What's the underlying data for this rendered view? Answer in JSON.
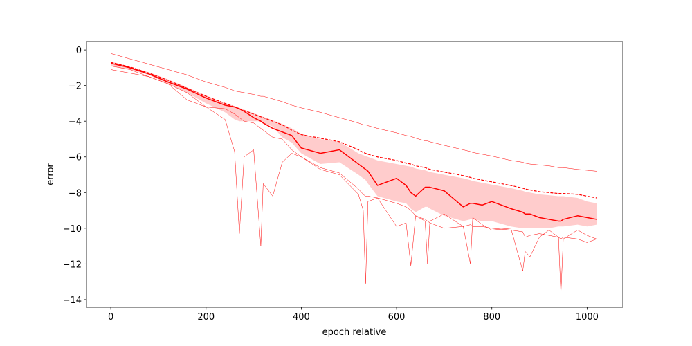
{
  "chart_data": {
    "type": "line",
    "x_label": "epoch relative",
    "y_label": "error",
    "xlim": [
      -51,
      1075
    ],
    "ylim": [
      -14.43,
      0.47
    ],
    "xticks": [
      0,
      200,
      400,
      600,
      800,
      1000
    ],
    "yticks": [
      0,
      {
        "value": -2,
        "label": "−2"
      },
      {
        "value": -4,
        "label": "−4"
      },
      {
        "value": -6,
        "label": "−6"
      },
      {
        "value": -8,
        "label": "−8"
      },
      {
        "value": -10,
        "label": "−10"
      },
      {
        "value": -12,
        "label": "−12"
      },
      {
        "value": -14,
        "label": "−14"
      }
    ],
    "x": [
      0,
      40,
      80,
      120,
      160,
      200,
      240,
      260,
      270,
      280,
      300,
      315,
      320,
      340,
      360,
      380,
      400,
      440,
      480,
      520,
      530,
      535,
      540,
      560,
      600,
      620,
      630,
      640,
      660,
      665,
      670,
      700,
      740,
      755,
      760,
      780,
      800,
      840,
      865,
      870,
      880,
      900,
      920,
      940,
      945,
      950,
      980,
      1000,
      1020
    ],
    "band": {
      "color": "#ff0000",
      "opacity": 0.2,
      "lower": [
        -0.9,
        -1.1,
        -1.4,
        -1.9,
        -2.4,
        -3.0,
        -3.5,
        -3.9,
        -4.0,
        -4.0,
        -4.0,
        -4.0,
        -4.1,
        -4.3,
        -4.9,
        -5.2,
        -5.8,
        -6.4,
        -6.3,
        -7.0,
        -7.2,
        -7.3,
        -7.5,
        -8.2,
        -8.5,
        -8.6,
        -8.9,
        -9.1,
        -8.8,
        -8.8,
        -8.9,
        -9.3,
        -9.6,
        -9.5,
        -9.5,
        -9.6,
        -9.6,
        -9.9,
        -10.0,
        -10.0,
        -10.0,
        -10.0,
        -10.0,
        -9.9,
        -9.9,
        -9.9,
        -9.8,
        -9.9,
        -9.8
      ],
      "upper": [
        -0.65,
        -0.95,
        -1.25,
        -1.65,
        -2.1,
        -2.55,
        -3.0,
        -3.15,
        -3.25,
        -3.35,
        -3.55,
        -3.7,
        -3.75,
        -3.95,
        -4.15,
        -4.4,
        -4.7,
        -5.0,
        -5.15,
        -5.8,
        -5.9,
        -5.95,
        -6.0,
        -6.2,
        -6.4,
        -6.5,
        -6.55,
        -6.65,
        -6.75,
        -6.8,
        -6.85,
        -7.0,
        -7.2,
        -7.3,
        -7.35,
        -7.45,
        -7.55,
        -7.75,
        -7.9,
        -7.95,
        -8.0,
        -8.1,
        -8.15,
        -8.2,
        -8.2,
        -8.2,
        -8.3,
        -8.5,
        -8.6
      ]
    },
    "series": [
      {
        "color": "#ff0000",
        "width": 0.5,
        "dash": "solid",
        "values": [
          -0.2,
          -0.5,
          -0.8,
          -1.1,
          -1.4,
          -1.8,
          -2.1,
          -2.3,
          -2.35,
          -2.4,
          -2.5,
          -2.6,
          -2.6,
          -2.75,
          -2.9,
          -3.1,
          -3.25,
          -3.5,
          -3.8,
          -4.1,
          -4.2,
          -4.2,
          -4.25,
          -4.4,
          -4.65,
          -4.8,
          -4.85,
          -4.95,
          -5.1,
          -5.1,
          -5.15,
          -5.35,
          -5.6,
          -5.7,
          -5.75,
          -5.85,
          -5.95,
          -6.2,
          -6.3,
          -6.35,
          -6.4,
          -6.45,
          -6.5,
          -6.6,
          -6.6,
          -6.6,
          -6.7,
          -6.75,
          -6.8
        ]
      },
      {
        "color": "#ff0000",
        "width": 0.5,
        "dash": "solid",
        "values": [
          -1.1,
          -1.3,
          -1.5,
          -1.9,
          -2.4,
          -3.2,
          -3.3,
          -3.6,
          -3.8,
          -4.0,
          -4.1,
          -4.4,
          -4.5,
          -4.9,
          -5.0,
          -5.6,
          -6.0,
          -6.6,
          -6.9,
          -7.8,
          -8.1,
          -8.2,
          -8.2,
          -8.3,
          -8.6,
          -8.8,
          -9.0,
          -9.3,
          -9.5,
          -9.6,
          -9.7,
          -10.0,
          -9.9,
          -9.8,
          -9.9,
          -9.9,
          -10.0,
          -10.1,
          -10.2,
          -10.5,
          -10.4,
          -10.3,
          -10.4,
          -10.5,
          -10.6,
          -10.5,
          -10.6,
          -10.8,
          -10.6
        ]
      },
      {
        "color": "#ff0000",
        "width": 0.5,
        "dash": "solid",
        "values": [
          -0.9,
          -1.1,
          -1.5,
          -1.9,
          -2.8,
          -3.2,
          -3.9,
          -5.7,
          -10.3,
          -6.0,
          -5.6,
          -11.0,
          -7.5,
          -8.2,
          -6.3,
          -5.8,
          -6.0,
          -6.7,
          -7.0,
          -8.1,
          -9.0,
          -13.1,
          -8.5,
          -8.3,
          -9.9,
          -9.7,
          -12.1,
          -9.3,
          -9.6,
          -12.0,
          -9.6,
          -9.2,
          -9.9,
          -12.0,
          -9.4,
          -9.8,
          -10.1,
          -10.0,
          -12.4,
          -11.3,
          -11.6,
          -10.5,
          -10.1,
          -10.5,
          -13.7,
          -10.6,
          -10.1,
          -10.4,
          -10.6
        ]
      },
      {
        "color": "#ff0000",
        "width": 1.2,
        "dash": "dashed",
        "values": [
          -0.7,
          -0.95,
          -1.3,
          -1.7,
          -2.15,
          -2.6,
          -3.0,
          -3.2,
          -3.3,
          -3.4,
          -3.6,
          -3.75,
          -3.8,
          -4.0,
          -4.2,
          -4.5,
          -4.75,
          -4.95,
          -5.15,
          -5.6,
          -5.75,
          -5.8,
          -5.85,
          -6.0,
          -6.2,
          -6.35,
          -6.4,
          -6.5,
          -6.6,
          -6.65,
          -6.7,
          -6.85,
          -7.05,
          -7.15,
          -7.2,
          -7.3,
          -7.4,
          -7.6,
          -7.75,
          -7.8,
          -7.85,
          -7.95,
          -8.0,
          -8.05,
          -8.05,
          -8.05,
          -8.1,
          -8.2,
          -8.3
        ]
      },
      {
        "color": "#ff0000",
        "width": 1.5,
        "dash": "solid",
        "values": [
          -0.75,
          -1.0,
          -1.35,
          -1.8,
          -2.2,
          -2.7,
          -3.1,
          -3.2,
          -3.3,
          -3.45,
          -3.8,
          -4.0,
          -4.1,
          -4.4,
          -4.6,
          -4.8,
          -5.5,
          -5.8,
          -5.6,
          -6.4,
          -6.6,
          -6.7,
          -6.8,
          -7.6,
          -7.2,
          -7.6,
          -8.0,
          -8.2,
          -7.7,
          -7.7,
          -7.7,
          -7.9,
          -8.8,
          -8.6,
          -8.6,
          -8.7,
          -8.5,
          -8.9,
          -9.1,
          -9.2,
          -9.2,
          -9.4,
          -9.5,
          -9.6,
          -9.6,
          -9.5,
          -9.3,
          -9.4,
          -9.5
        ]
      }
    ]
  }
}
